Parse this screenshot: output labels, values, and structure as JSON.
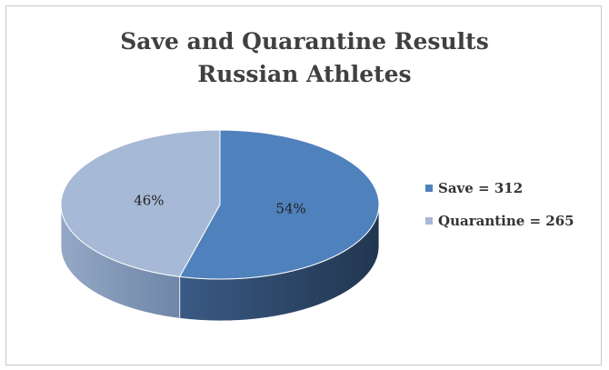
{
  "chart_data": {
    "type": "pie",
    "title_lines": [
      "Save and Quarantine Results",
      "Russian Athletes"
    ],
    "slices": [
      {
        "label": "Save = 312",
        "value": 312,
        "percent_label": "54%",
        "color": "#4f81bd",
        "side_color": "#2c4566"
      },
      {
        "label": "Quarantine = 265",
        "value": 265,
        "percent_label": "46%",
        "color": "#a6b9d6",
        "side_color": "#7d93b3"
      }
    ],
    "legend_position": "right",
    "style": "3d"
  }
}
